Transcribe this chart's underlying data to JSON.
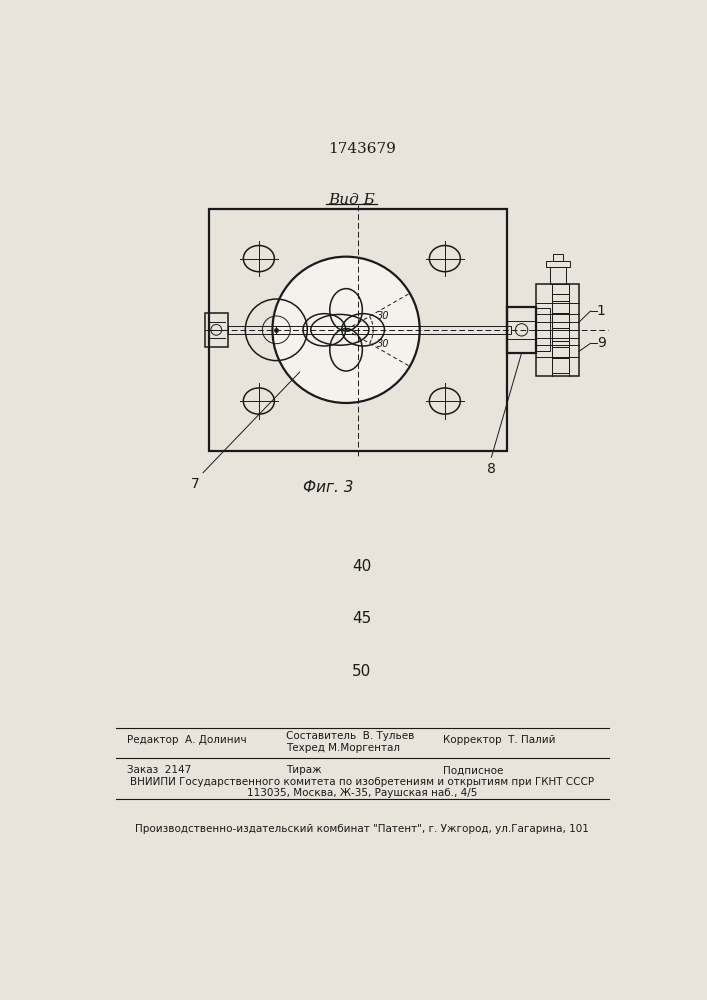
{
  "patent_number": "1743679",
  "view_label": "Вид Б",
  "fig_label": "Фиг. 3",
  "num_40": "40",
  "num_45": "45",
  "num_50": "50",
  "editor_line": "Редактор  А. Долинич",
  "composer_line1": "Составитель  В. Тульев",
  "composer_line2": "Техред М.Моргентал",
  "corrector_line": "Корректор  Т. Палий",
  "order_line": "Заказ  2147",
  "tirazh_line": "Тираж",
  "podpisnoe_line": "Подписное",
  "vniipи_line": "ВНИИПИ Государственного комитета по изобретениям и открытиям при ГКНТ СССР",
  "address_line": "113035, Москва, Ж-35, Раушская наб., 4/5",
  "factory_line": "Производственно-издательский комбинат \"Патент\", г. Ужгород, ул.Гагарина, 101",
  "bg_color": "#e8e4dc",
  "line_color": "#1a1a1a",
  "label_1": "1",
  "label_7": "7",
  "label_8": "8",
  "label_9": "9"
}
